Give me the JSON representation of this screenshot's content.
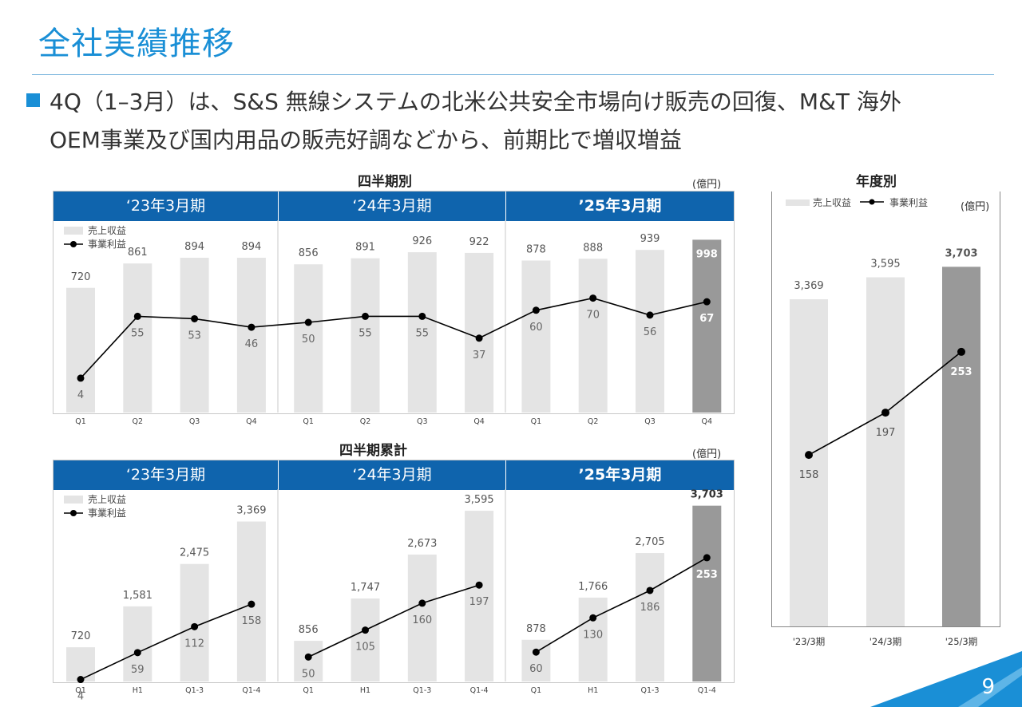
{
  "page": {
    "title": "全社実績推移",
    "bullet_line1": "4Q（1–3月）は、S&S 無線システムの北米公共安全市場向け販売の回復、M&T 海外",
    "bullet_line2": "OEM事業及び国内用品の販売好調などから、前期比で増収増益",
    "page_number": "9"
  },
  "quarterly": {
    "section_title": "四半期別",
    "unit": "(億円)"
  },
  "cumulative": {
    "section_title": "四半期累計",
    "unit": "(億円)"
  },
  "annual": {
    "section_title": "年度別",
    "unit": "(億円)",
    "legend_revenue": "売上収益",
    "legend_profit": "事業利益"
  },
  "period_headers": [
    "‘23年3月期",
    "‘24年3月期",
    "’25年3月期"
  ],
  "legend": {
    "revenue": "売上収益",
    "profit": "事業利益"
  },
  "colors": {
    "bar": "#e4e4e4",
    "bar_highlight": "#999999",
    "band": "#0f64ad",
    "title": "#1a8fd6",
    "line": "#000000"
  },
  "chart_data": [
    {
      "type": "bar",
      "id": "quarterly",
      "title": "四半期別",
      "groups": [
        "‘23年3月期",
        "‘24年3月期",
        "’25年3月期"
      ],
      "categories": [
        "Q1",
        "Q2",
        "Q3",
        "Q4",
        "Q1",
        "Q2",
        "Q3",
        "Q4",
        "Q1",
        "Q2",
        "Q3",
        "Q4"
      ],
      "series": [
        {
          "name": "売上収益",
          "kind": "bar",
          "values": [
            720,
            861,
            894,
            894,
            856,
            891,
            926,
            922,
            878,
            888,
            939,
            998
          ]
        },
        {
          "name": "事業利益",
          "kind": "line",
          "values": [
            4,
            55,
            53,
            46,
            50,
            55,
            55,
            37,
            60,
            70,
            56,
            67
          ]
        }
      ],
      "highlight_index": 11,
      "unit": "(億円)"
    },
    {
      "type": "bar",
      "id": "cumulative",
      "title": "四半期累計",
      "groups": [
        "‘23年3月期",
        "‘24年3月期",
        "’25年3月期"
      ],
      "categories": [
        "Q1",
        "H1",
        "Q1-3",
        "Q1-4",
        "Q1",
        "H1",
        "Q1-3",
        "Q1-4",
        "Q1",
        "H1",
        "Q1-3",
        "Q1-4"
      ],
      "series": [
        {
          "name": "売上収益",
          "kind": "bar",
          "values": [
            720,
            1581,
            2475,
            3369,
            856,
            1747,
            2673,
            3595,
            878,
            1766,
            2705,
            3703
          ]
        },
        {
          "name": "事業利益",
          "kind": "line",
          "values": [
            4,
            59,
            112,
            158,
            50,
            105,
            160,
            197,
            60,
            130,
            186,
            253
          ]
        }
      ],
      "highlight_index": 11,
      "unit": "(億円)"
    },
    {
      "type": "bar",
      "id": "annual",
      "title": "年度別",
      "categories": [
        "'23/3期",
        "'24/3期",
        "'25/3期"
      ],
      "series": [
        {
          "name": "売上収益",
          "kind": "bar",
          "values": [
            3369,
            3595,
            3703
          ]
        },
        {
          "name": "事業利益",
          "kind": "line",
          "values": [
            158,
            197,
            253
          ]
        }
      ],
      "highlight_index": 2,
      "unit": "(億円)"
    }
  ]
}
